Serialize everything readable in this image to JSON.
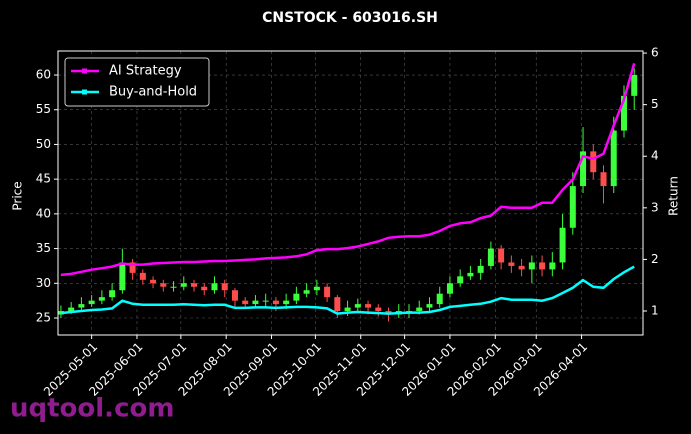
{
  "chart_data": {
    "type": "candlestick",
    "title": "CNSTOCK - 603016.SH",
    "ylabel": "Price",
    "y2label": "Return",
    "watermark": "uqtool.com",
    "up_color": "#3cff3c",
    "down_color": "#ff4d4d",
    "grid": true,
    "legend": "upper-left",
    "xlim": [
      "2025-04-08",
      "2026-05-13"
    ],
    "xticks": [
      "2025-05-01",
      "2025-06-01",
      "2025-07-01",
      "2025-08-01",
      "2025-09-01",
      "2025-10-01",
      "2025-11-01",
      "2025-12-01",
      "2026-01-01",
      "2026-02-01",
      "2026-03-01",
      "2026-04-01"
    ],
    "ylim": [
      22.55,
      63.46
    ],
    "yticks": [
      25,
      30,
      35,
      40,
      45,
      50,
      55,
      60
    ],
    "y2lim": [
      0.535,
      6.04
    ],
    "y2ticks": [
      1,
      2,
      3,
      4,
      5,
      6
    ],
    "x": [
      "2025-04-10",
      "2025-04-17",
      "2025-04-24",
      "2025-05-01",
      "2025-05-08",
      "2025-05-15",
      "2025-05-22",
      "2025-05-29",
      "2025-06-05",
      "2025-06-12",
      "2025-06-19",
      "2025-06-26",
      "2025-07-03",
      "2025-07-10",
      "2025-07-17",
      "2025-07-24",
      "2025-07-31",
      "2025-08-07",
      "2025-08-14",
      "2025-08-21",
      "2025-08-28",
      "2025-09-04",
      "2025-09-11",
      "2025-09-18",
      "2025-09-25",
      "2025-10-02",
      "2025-10-09",
      "2025-10-16",
      "2025-10-23",
      "2025-10-30",
      "2025-11-06",
      "2025-11-13",
      "2025-11-20",
      "2025-11-27",
      "2025-12-04",
      "2025-12-11",
      "2025-12-18",
      "2025-12-25",
      "2026-01-01",
      "2026-01-08",
      "2026-01-15",
      "2026-01-22",
      "2026-01-29",
      "2026-02-05",
      "2026-02-12",
      "2026-02-19",
      "2026-02-26",
      "2026-03-05",
      "2026-03-12",
      "2026-03-19",
      "2026-03-26",
      "2026-04-02",
      "2026-04-09",
      "2026-04-16",
      "2026-04-23",
      "2026-04-30",
      "2026-05-07"
    ],
    "open": [
      25.5,
      26,
      26.5,
      27,
      27.5,
      28,
      29,
      33,
      31.5,
      30.5,
      30,
      29.5,
      29.5,
      30,
      29.5,
      29,
      30,
      29,
      27.5,
      27,
      27.5,
      27.5,
      27,
      27.5,
      28.5,
      29,
      29.5,
      28,
      26,
      26.5,
      27,
      26.5,
      26,
      25.5,
      26,
      26,
      26.5,
      27,
      28.5,
      30,
      31,
      31.5,
      32.5,
      35,
      33,
      32.5,
      32,
      33,
      32,
      33,
      38,
      44,
      49,
      46,
      44,
      52,
      57
    ],
    "close": [
      26,
      26.5,
      27,
      27.5,
      28,
      29,
      33,
      31.5,
      30.5,
      30,
      29.5,
      29.5,
      30,
      29.5,
      29,
      30,
      29,
      27.5,
      27,
      27.5,
      27.5,
      27,
      27.5,
      28.5,
      29,
      29.5,
      28,
      26,
      26.5,
      27,
      26.5,
      26,
      25.5,
      26,
      26,
      26.5,
      27,
      28.5,
      30,
      31,
      31.5,
      32.5,
      35,
      33,
      32.5,
      32,
      33,
      32,
      33,
      38,
      44,
      49,
      46,
      44,
      52,
      57,
      60
    ],
    "high": [
      26.8,
      27.3,
      28,
      28.3,
      29,
      30,
      35,
      33.5,
      32,
      31,
      30.5,
      30.3,
      31,
      30.5,
      30,
      31,
      30.5,
      29.3,
      28,
      28.3,
      28.5,
      28,
      28.5,
      29.5,
      30,
      30.5,
      30,
      28.3,
      27.5,
      27.8,
      27.5,
      27,
      26.5,
      27,
      27,
      27.5,
      28,
      29.5,
      31,
      32,
      32.5,
      33.5,
      36,
      35.5,
      34,
      33.5,
      34,
      34,
      34.5,
      40,
      46,
      52.5,
      50,
      47,
      54,
      58.5,
      61
    ],
    "low": [
      25,
      25.6,
      26,
      26.6,
      27,
      27.5,
      28.5,
      30.5,
      29.8,
      29.3,
      28.8,
      28.8,
      29,
      28.8,
      28.3,
      28.5,
      28,
      26.5,
      26.3,
      26.5,
      26.5,
      26,
      26.3,
      27,
      28,
      28.3,
      27.3,
      25,
      25.3,
      26,
      25.5,
      25.2,
      24.5,
      25,
      25,
      25.5,
      26,
      26.5,
      28,
      29.5,
      30.5,
      30.5,
      32,
      32,
      31.5,
      31,
      30,
      31,
      31,
      32,
      37,
      43,
      45,
      41.5,
      43,
      51,
      55
    ],
    "series": [
      {
        "name": "AI Strategy",
        "color": "#ff00ff",
        "axis": "y2",
        "values": [
          1.7,
          1.72,
          1.76,
          1.8,
          1.83,
          1.86,
          1.92,
          1.9,
          1.9,
          1.92,
          1.93,
          1.94,
          1.95,
          1.95,
          1.96,
          1.97,
          1.97,
          1.98,
          1.99,
          2.0,
          2.02,
          2.03,
          2.04,
          2.06,
          2.1,
          2.18,
          2.2,
          2.2,
          2.22,
          2.25,
          2.3,
          2.35,
          2.42,
          2.44,
          2.45,
          2.45,
          2.48,
          2.55,
          2.65,
          2.7,
          2.72,
          2.8,
          2.85,
          3.02,
          3.0,
          3.0,
          3.0,
          3.1,
          3.1,
          3.35,
          3.55,
          4.0,
          3.95,
          4.05,
          4.6,
          5.1,
          5.8
        ]
      },
      {
        "name": "Buy-and-Hold",
        "color": "#00ffff",
        "axis": "y2",
        "values": [
          0.96,
          0.98,
          1.0,
          1.02,
          1.03,
          1.05,
          1.2,
          1.14,
          1.12,
          1.12,
          1.12,
          1.12,
          1.13,
          1.12,
          1.11,
          1.12,
          1.12,
          1.06,
          1.06,
          1.07,
          1.07,
          1.06,
          1.07,
          1.08,
          1.08,
          1.07,
          1.05,
          0.95,
          0.97,
          0.98,
          0.97,
          0.96,
          0.95,
          0.96,
          0.97,
          0.97,
          0.98,
          1.02,
          1.08,
          1.1,
          1.12,
          1.14,
          1.18,
          1.25,
          1.22,
          1.22,
          1.22,
          1.2,
          1.25,
          1.35,
          1.45,
          1.6,
          1.47,
          1.45,
          1.62,
          1.75,
          1.86
        ]
      }
    ]
  }
}
